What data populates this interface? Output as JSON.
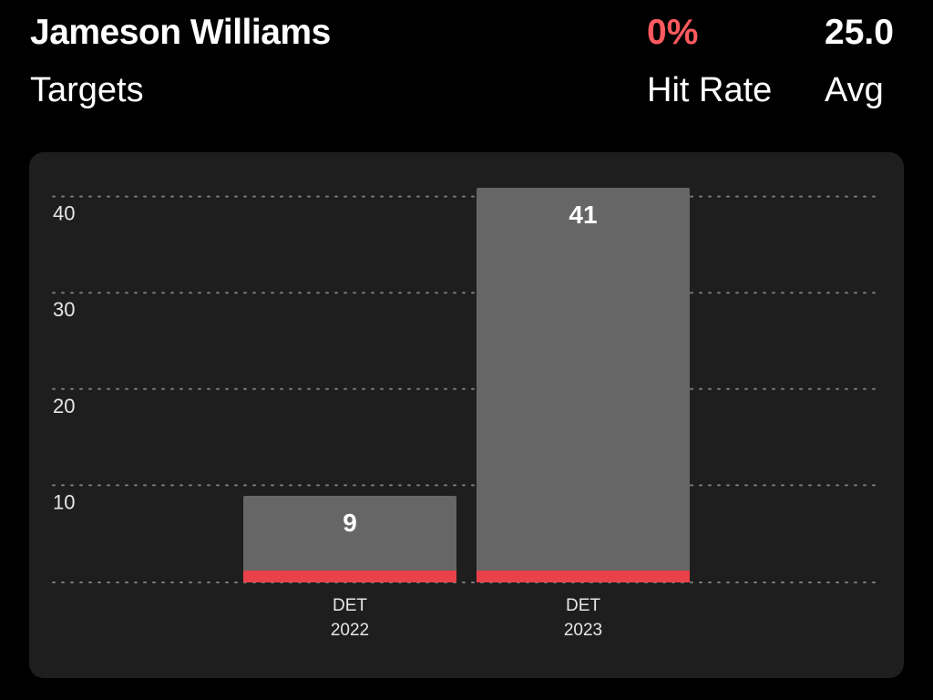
{
  "header": {
    "player_name": "Jameson Williams",
    "stat_type": "Targets",
    "hit_rate_value": "0%",
    "hit_rate_label": "Hit Rate",
    "avg_value": "25.0",
    "avg_label": "Avg"
  },
  "colors": {
    "background": "#000000",
    "card": "#1e1e1e",
    "bar": "#666666",
    "miss": "#e8414a",
    "hit_rate": "#ff5a5f",
    "grid": "#7a7a7a"
  },
  "chart_data": {
    "type": "bar",
    "categories": [
      {
        "team": "DET",
        "year": "2022"
      },
      {
        "team": "DET",
        "year": "2023"
      }
    ],
    "values": [
      9,
      41
    ],
    "value_labels": [
      "9",
      "41"
    ],
    "yticks": [
      10,
      20,
      30,
      40
    ],
    "ylim": [
      0,
      40
    ],
    "grid": true,
    "title": "",
    "xlabel": "",
    "ylabel": ""
  }
}
